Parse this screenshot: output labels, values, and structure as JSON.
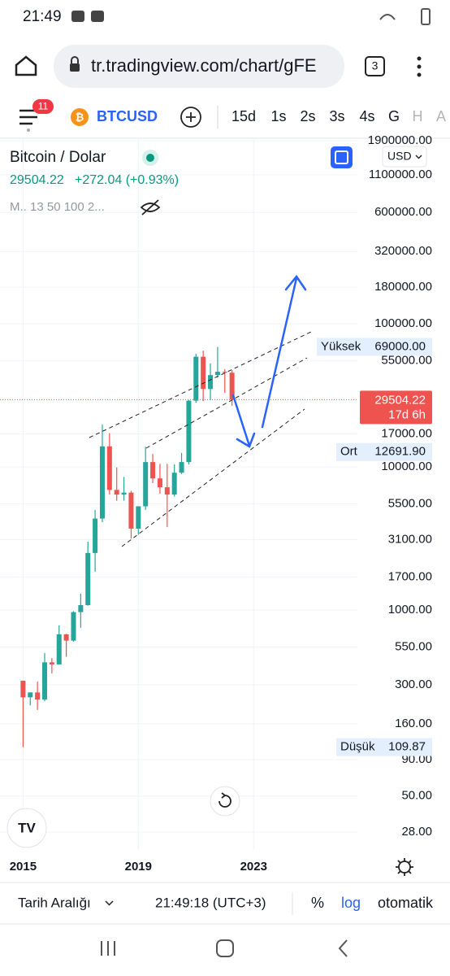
{
  "status_bar": {
    "time": "21:49"
  },
  "browser": {
    "url": "tr.tradingview.com/chart/gFE",
    "tabs": "3"
  },
  "toolbar": {
    "badge": "11",
    "symbol": "BTCUSD",
    "intervals": [
      "15d",
      "1s",
      "2s",
      "3s",
      "4s",
      "G",
      "H",
      "A"
    ]
  },
  "legend": {
    "change": "+272.04 (+0.93%)",
    "indicators": "M.. 13 50 100 2..."
  },
  "currency": "USD",
  "chart_data": {
    "type": "candlestick",
    "title": "Bitcoin / Dolar",
    "log_scale": true,
    "grid": true,
    "up_color": "#26a69a",
    "down_color": "#ef5350",
    "xlim": [
      2014.2,
      2026.6
    ],
    "xticks": [
      2015,
      2019,
      2023
    ],
    "ylim": [
      21,
      1980000
    ],
    "yticks": [
      {
        "value": 1900000,
        "label": "1900000.00"
      },
      {
        "value": 1100000,
        "label": "1100000.00"
      },
      {
        "value": 600000,
        "label": "600000.00"
      },
      {
        "value": 320000,
        "label": "320000.00"
      },
      {
        "value": 180000,
        "label": "180000.00"
      },
      {
        "value": 100000,
        "label": "100000.00"
      },
      {
        "value": 55000,
        "label": "55000.00"
      },
      {
        "value": 17000,
        "label": "17000.00"
      },
      {
        "value": 10000,
        "label": "10000.00"
      },
      {
        "value": 5500,
        "label": "5500.00"
      },
      {
        "value": 3100,
        "label": "3100.00"
      },
      {
        "value": 1700,
        "label": "1700.00"
      },
      {
        "value": 1000,
        "label": "1000.00"
      },
      {
        "value": 550,
        "label": "550.00"
      },
      {
        "value": 300,
        "label": "300.00"
      },
      {
        "value": 160,
        "label": "160.00"
      },
      {
        "value": 90,
        "label": "90.00"
      },
      {
        "value": 50,
        "label": "50.00"
      },
      {
        "value": 28,
        "label": "28.00"
      }
    ],
    "candles": {
      "x": [
        2015.0,
        2015.25,
        2015.5,
        2015.75,
        2016.0,
        2016.25,
        2016.5,
        2016.75,
        2017.0,
        2017.25,
        2017.5,
        2017.75,
        2018.0,
        2018.25,
        2018.5,
        2018.75,
        2019.0,
        2019.25,
        2019.5,
        2019.75,
        2020.0,
        2020.25,
        2020.5,
        2020.75,
        2021.0,
        2021.25,
        2021.5,
        2021.75,
        2022.0,
        2022.25
      ],
      "open": [
        320,
        245,
        265,
        236,
        430,
        416,
        675,
        610,
        965,
        1080,
        2500,
        4350,
        13900,
        6900,
        6400,
        6600,
        3700,
        5300,
        10800,
        8300,
        7200,
        6400,
        9100,
        10800,
        29000,
        58800,
        35000,
        43800,
        46200,
        45500
      ],
      "high": [
        320,
        265,
        315,
        500,
        460,
        780,
        680,
        980,
        1300,
        3000,
        5000,
        19800,
        17200,
        9900,
        8500,
        6800,
        5300,
        13800,
        12300,
        10500,
        10500,
        10400,
        12500,
        29300,
        61800,
        64900,
        52900,
        69000,
        48200,
        47400
      ],
      "low": [
        109.87,
        215,
        200,
        230,
        360,
        415,
        470,
        600,
        750,
        1070,
        1850,
        4100,
        6400,
        5800,
        5800,
        3150,
        3350,
        5000,
        7700,
        6500,
        3800,
        6200,
        8900,
        10400,
        28000,
        28800,
        29300,
        42000,
        32900,
        26700
      ],
      "close": [
        245,
        265,
        236,
        430,
        416,
        675,
        610,
        965,
        1080,
        2500,
        4350,
        13900,
        6900,
        6400,
        6600,
        3700,
        5300,
        10800,
        8300,
        7200,
        6400,
        9100,
        10800,
        29000,
        58800,
        35000,
        43800,
        46200,
        45500,
        29504.22
      ]
    },
    "price_line": {
      "value": 29504.22,
      "label": "29504.22",
      "countdown": "17d 6h",
      "color": "#ef5350"
    },
    "stats": [
      {
        "name": "Yüksek",
        "value": 69000,
        "label": "69000.00"
      },
      {
        "name": "Ort",
        "value": 12691.9,
        "label": "12691.90"
      },
      {
        "name": "Düşük",
        "value": 109.87,
        "label": "109.87"
      }
    ]
  },
  "bottom_bar": {
    "range": "Tarih Aralığı",
    "clock": "21:49:18 (UTC+3)",
    "percent": "%",
    "log": "log",
    "auto": "otomatik"
  }
}
